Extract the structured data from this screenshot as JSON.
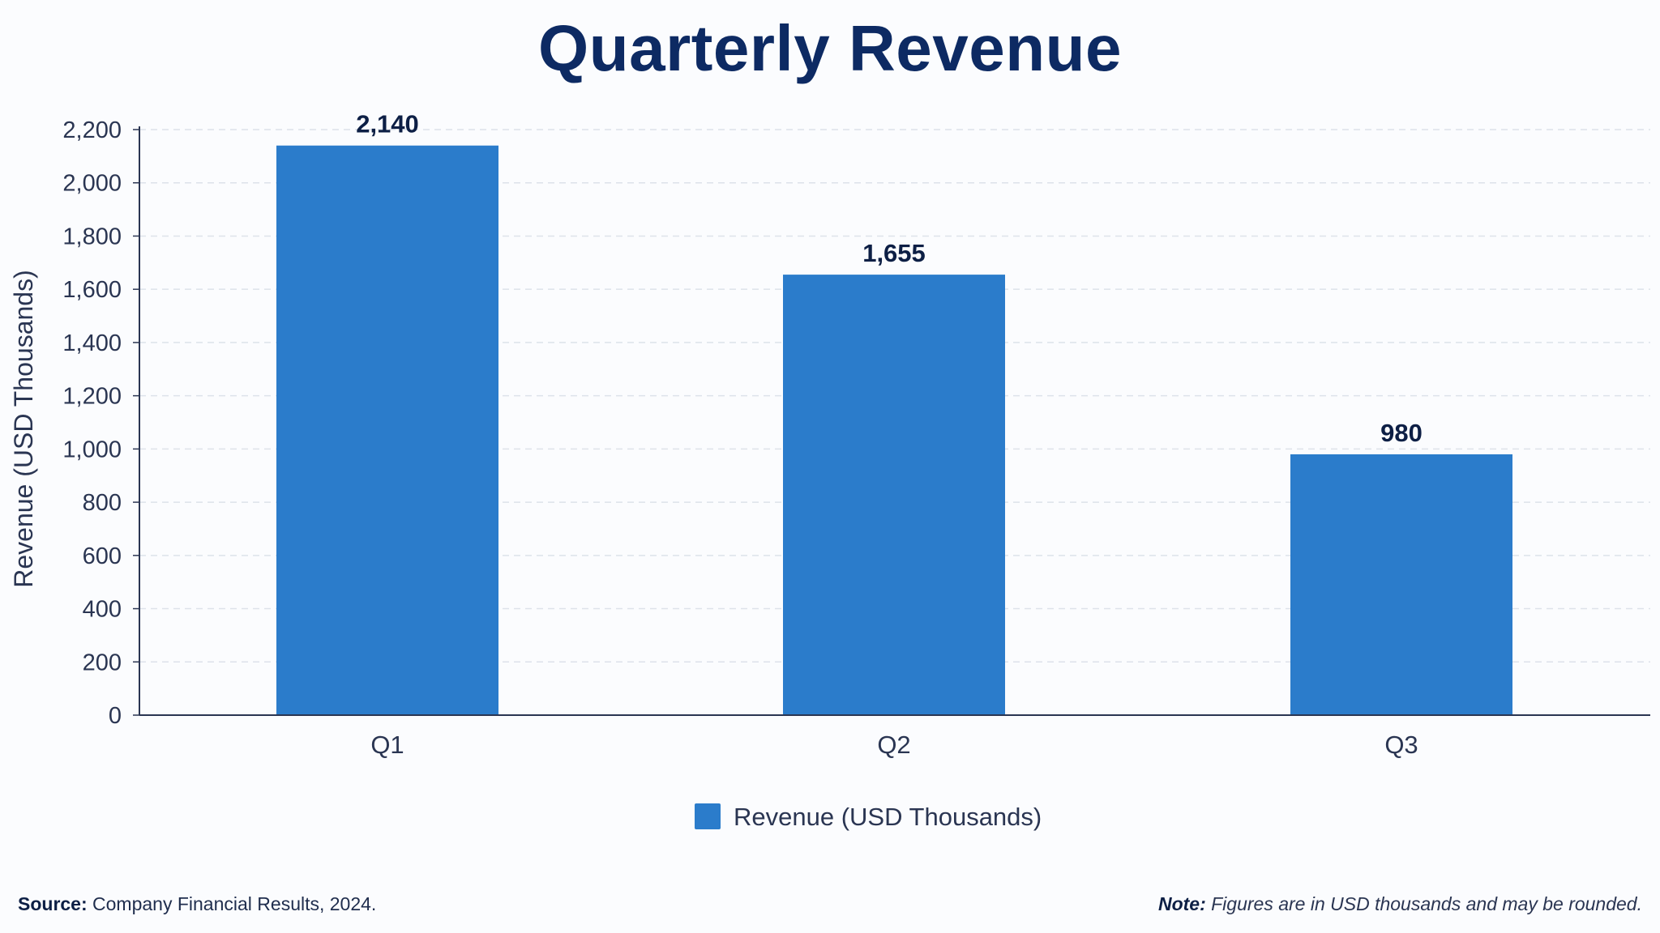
{
  "chart_data": {
    "type": "bar",
    "title": "Quarterly Revenue",
    "categories": [
      "Q1",
      "Q2",
      "Q3"
    ],
    "series": [
      {
        "name": "Revenue (USD Thousands)",
        "values": [
          2140,
          1655,
          980
        ]
      }
    ],
    "data_labels": [
      "2,140",
      "1,655",
      "980"
    ],
    "ylabel": "Revenue (USD Thousands)",
    "xlabel": "",
    "ylim": [
      0,
      2200
    ],
    "yticks": [
      0,
      200,
      400,
      600,
      800,
      1000,
      1200,
      1400,
      1600,
      1800,
      2000,
      2200
    ],
    "ytick_labels": [
      "0",
      "200",
      "400",
      "600",
      "800",
      "1,000",
      "1,200",
      "1,400",
      "1,600",
      "1,800",
      "2,000",
      "2,200"
    ],
    "grid": "horizontal-dashed",
    "legend_position": "bottom-center",
    "colors": {
      "bar": "#2b7ccb",
      "title": "#0d2a63",
      "data_label": "#0d1f45",
      "axis": "#2a3552",
      "grid": "#dde2ea"
    }
  },
  "footer": {
    "source_label": "Source:",
    "source_text": "Company Financial Results, 2024.",
    "note_label": "Note:",
    "note_text": "Figures are in USD thousands and may be rounded."
  }
}
